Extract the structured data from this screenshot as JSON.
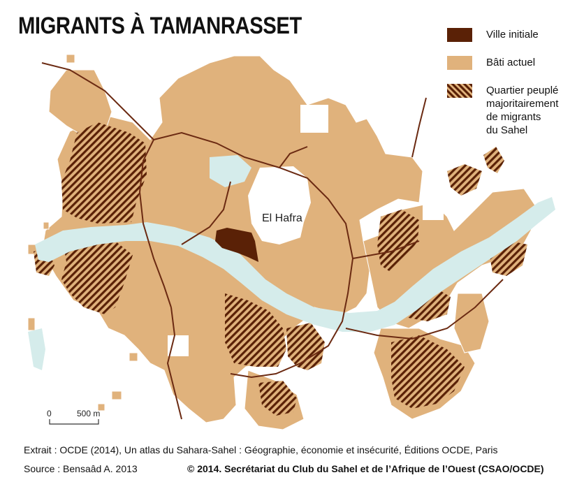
{
  "title": "MIGRANTS À TAMANRASSET",
  "legend": {
    "ville_initiale": "Ville initiale",
    "bati_actuel": "Bâti actuel",
    "quartier_line1": "Quartier peuplé",
    "quartier_line2": "majoritairement",
    "quartier_line3": "de migrants",
    "quartier_line4": "du Sahel"
  },
  "map": {
    "place_label": "El Hafra",
    "scale_start": "0",
    "scale_end": "500 m"
  },
  "footer": {
    "extract": "Extrait : OCDE (2014), Un atlas du Sahara-Sahel : Géographie, économie et insécurité, Éditions OCDE, Paris",
    "source": "Source : Bensaâd A. 2013",
    "credit": "© 2014. Secrétariat du Club du Sahel et de l’Afrique de l’Ouest (CSAO/OCDE)"
  },
  "colors": {
    "ville_initiale": "#5a2106",
    "bati_actuel": "#e0b27c",
    "river": "#d5eceb",
    "roads": "#6b2a12"
  }
}
